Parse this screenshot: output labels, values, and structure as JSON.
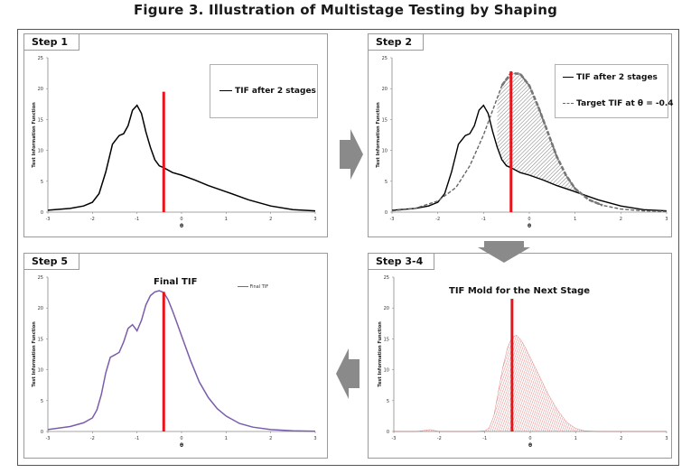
{
  "figure_title": "Figure 3. Illustration of Multistage Testing by Shaping",
  "colors": {
    "tif": "#000000",
    "target": "#666666",
    "cut": "#e8141c",
    "final": "#7a5cad",
    "mold": "#d23a3a",
    "arrow": "#8a8a8a"
  },
  "steps": {
    "step1": "Step 1",
    "step2": "Step 2",
    "step34": "Step 3-4",
    "step5": "Step 5"
  },
  "legend": {
    "tif_after_2_stages": "TIF after 2 stages",
    "target_tif": "Target TIF at θ = -0.4",
    "final_tif_small": "Final TIF"
  },
  "titles": {
    "final_tif": "Final TIF",
    "mold": "TIF Mold for the Next Stage"
  },
  "chart_data": [
    {
      "panel": "step1",
      "type": "line",
      "title": "",
      "xlabel": "θ",
      "ylabel": "Test Information Function",
      "xlim": [
        -3,
        3
      ],
      "ylim": [
        0,
        25
      ],
      "xticks": [
        -3,
        -2,
        -1,
        0,
        1,
        2,
        3
      ],
      "yticks": [
        0,
        5,
        10,
        15,
        20,
        25
      ],
      "series": [
        {
          "name": "TIF after 2 stages",
          "x": [
            -3,
            -2.5,
            -2.2,
            -2,
            -1.85,
            -1.7,
            -1.55,
            -1.4,
            -1.3,
            -1.2,
            -1.1,
            -1.0,
            -0.9,
            -0.8,
            -0.7,
            -0.6,
            -0.5,
            -0.4,
            -0.2,
            0,
            0.3,
            0.6,
            1.0,
            1.5,
            2.0,
            2.5,
            3.0
          ],
          "values": [
            0.3,
            0.6,
            1.0,
            1.6,
            3.0,
            6.5,
            11.0,
            12.4,
            12.7,
            14.0,
            16.5,
            17.3,
            16.0,
            13.0,
            10.5,
            8.5,
            7.5,
            7.2,
            6.4,
            6.0,
            5.2,
            4.3,
            3.3,
            2.0,
            1.0,
            0.4,
            0.2
          ]
        }
      ],
      "cut_theta": -0.4
    },
    {
      "panel": "step2",
      "type": "area",
      "title": "",
      "xlabel": "θ",
      "ylabel": "Test Information Function",
      "xlim": [
        -3,
        3
      ],
      "ylim": [
        0,
        25
      ],
      "xticks": [
        -3,
        -2,
        -1,
        0,
        1,
        2,
        3
      ],
      "yticks": [
        0,
        5,
        10,
        15,
        20,
        25
      ],
      "series": [
        {
          "name": "TIF after 2 stages",
          "x": [
            -3,
            -2.5,
            -2.2,
            -2,
            -1.85,
            -1.7,
            -1.55,
            -1.4,
            -1.3,
            -1.2,
            -1.1,
            -1.0,
            -0.9,
            -0.8,
            -0.7,
            -0.6,
            -0.5,
            -0.4,
            -0.2,
            0,
            0.3,
            0.6,
            1.0,
            1.5,
            2.0,
            2.5,
            3.0
          ],
          "values": [
            0.3,
            0.6,
            1.0,
            1.6,
            3.0,
            6.5,
            11.0,
            12.4,
            12.7,
            14.0,
            16.5,
            17.3,
            16.0,
            13.0,
            10.5,
            8.5,
            7.5,
            7.2,
            6.4,
            6.0,
            5.2,
            4.3,
            3.3,
            2.0,
            1.0,
            0.4,
            0.2
          ]
        },
        {
          "name": "Target TIF at θ = -0.4",
          "x": [
            -3,
            -2.5,
            -2,
            -1.6,
            -1.3,
            -1.0,
            -0.8,
            -0.6,
            -0.4,
            -0.2,
            0,
            0.2,
            0.4,
            0.6,
            0.8,
            1.0,
            1.3,
            1.6,
            2.0,
            2.5,
            3.0
          ],
          "values": [
            0.2,
            0.6,
            1.8,
            4.0,
            7.5,
            12.5,
            16.5,
            20.5,
            22.5,
            22.4,
            20.5,
            17.0,
            13.0,
            9.0,
            6.0,
            3.8,
            2.0,
            1.1,
            0.5,
            0.2,
            0.1
          ]
        }
      ],
      "cut_theta": -0.4
    },
    {
      "panel": "step34",
      "type": "area",
      "title": "TIF Mold for the Next Stage",
      "xlabel": "θ",
      "ylabel": "Test Information Function",
      "xlim": [
        -3,
        3
      ],
      "ylim": [
        0,
        25
      ],
      "xticks": [
        -3,
        -2,
        -1,
        0,
        1,
        2,
        3
      ],
      "yticks": [
        0,
        5,
        10,
        15,
        20,
        25
      ],
      "series": [
        {
          "name": "TIF mold",
          "x": [
            -3,
            -2.5,
            -2.2,
            -2.0,
            -1.5,
            -1.2,
            -1.0,
            -0.9,
            -0.8,
            -0.7,
            -0.6,
            -0.5,
            -0.4,
            -0.3,
            -0.2,
            -0.1,
            0,
            0.2,
            0.4,
            0.6,
            0.8,
            1.0,
            1.2,
            1.5,
            2.0,
            2.5,
            3.0
          ],
          "values": [
            0,
            0,
            0.3,
            0,
            0,
            0,
            0.1,
            0.6,
            2.5,
            6.5,
            10.5,
            13.5,
            15.3,
            15.6,
            14.8,
            13.5,
            12.0,
            9.0,
            6.0,
            3.5,
            1.5,
            0.5,
            0.1,
            0,
            0,
            0,
            0
          ]
        }
      ],
      "cut_theta": -0.4
    },
    {
      "panel": "step5",
      "type": "line",
      "title": "Final TIF",
      "xlabel": "θ",
      "ylabel": "Test Information Function",
      "xlim": [
        -3,
        3
      ],
      "ylim": [
        0,
        25
      ],
      "xticks": [
        -3,
        -2,
        -1,
        0,
        1,
        2,
        3
      ],
      "yticks": [
        0,
        5,
        10,
        15,
        20,
        25
      ],
      "series": [
        {
          "name": "Final TIF",
          "x": [
            -3,
            -2.5,
            -2.2,
            -2,
            -1.9,
            -1.8,
            -1.7,
            -1.6,
            -1.5,
            -1.4,
            -1.3,
            -1.2,
            -1.1,
            -1.0,
            -0.9,
            -0.8,
            -0.7,
            -0.6,
            -0.5,
            -0.4,
            -0.3,
            -0.2,
            -0.1,
            0,
            0.2,
            0.4,
            0.6,
            0.8,
            1.0,
            1.3,
            1.6,
            2.0,
            2.5,
            3.0
          ],
          "values": [
            0.3,
            0.8,
            1.4,
            2.2,
            3.5,
            6.0,
            9.5,
            12.0,
            12.4,
            12.8,
            14.5,
            16.7,
            17.3,
            16.3,
            18.0,
            20.5,
            22.0,
            22.6,
            22.8,
            22.5,
            21.3,
            19.5,
            17.5,
            15.5,
            11.5,
            8.0,
            5.5,
            3.7,
            2.5,
            1.3,
            0.7,
            0.3,
            0.1,
            0.05
          ]
        }
      ],
      "cut_theta": -0.4
    }
  ]
}
